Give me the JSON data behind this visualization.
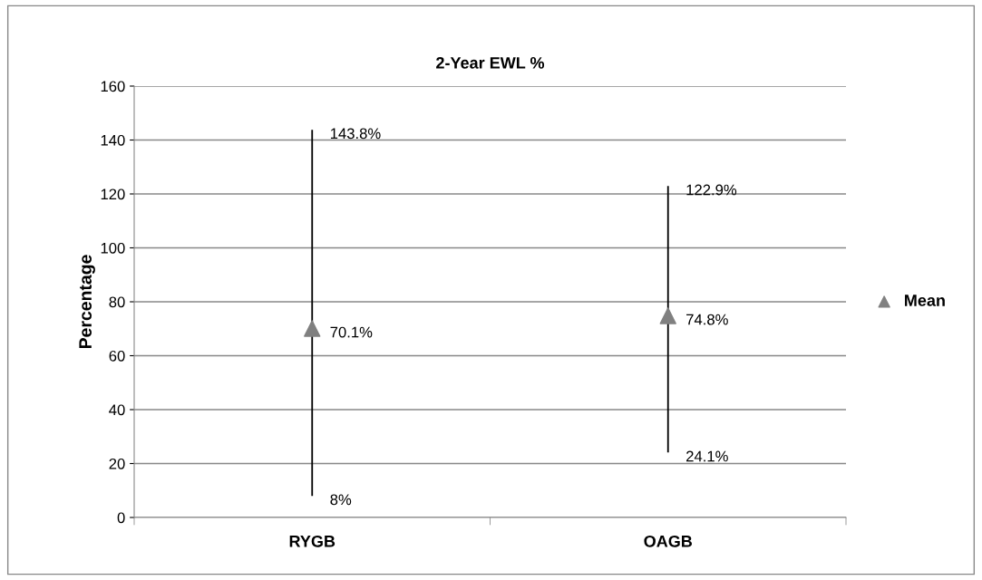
{
  "chart_data": {
    "type": "scatter",
    "title": "2-Year EWL %",
    "ylabel": "Percentage",
    "categories": [
      "RYGB",
      "OAGB"
    ],
    "series": [
      {
        "name": "Mean",
        "color": "#808080",
        "values": [
          70.1,
          74.8
        ],
        "errors": [
          [
            8,
            143.8
          ],
          [
            24.1,
            122.9
          ]
        ],
        "value_labels": [
          "70.1%",
          "74.8%"
        ]
      }
    ],
    "annotations": [
      {
        "text": "143.8%",
        "x": "RYGB",
        "y": 143.8
      },
      {
        "text": "8%",
        "x": "RYGB",
        "y": 8
      },
      {
        "text": "122.9%",
        "x": "OAGB",
        "y": 122.9
      },
      {
        "text": "24.1%",
        "x": "OAGB",
        "y": 24.1
      }
    ],
    "ylim": [
      0,
      160
    ],
    "yticks": [
      0,
      20,
      40,
      60,
      80,
      100,
      120,
      140,
      160
    ],
    "grid": "y",
    "legend": "right",
    "marker": "triangle"
  }
}
